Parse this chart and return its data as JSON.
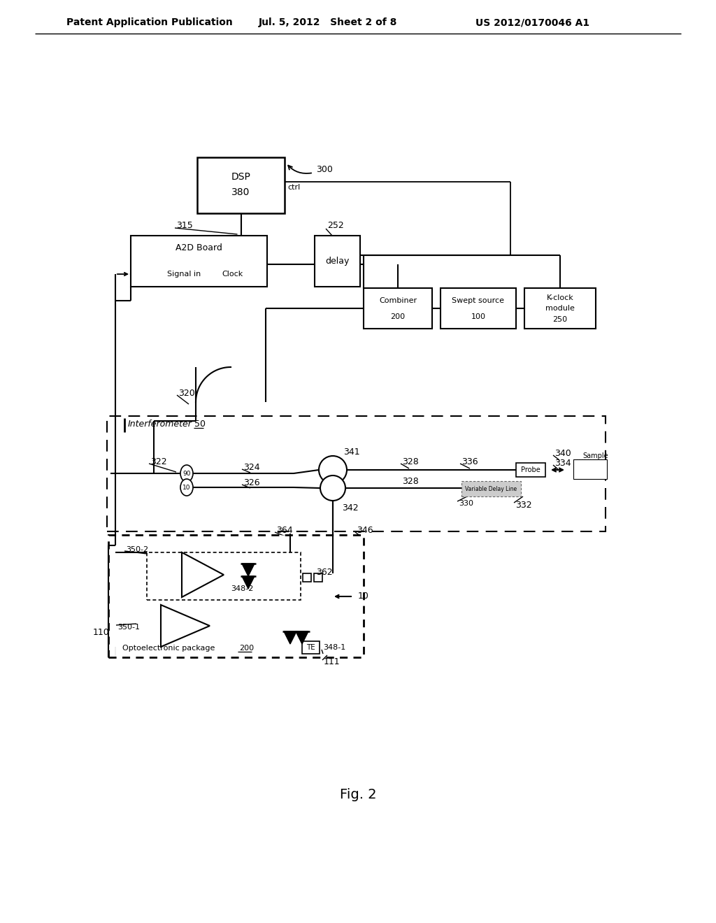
{
  "header_left": "Patent Application Publication",
  "header_mid": "Jul. 5, 2012   Sheet 2 of 8",
  "header_right": "US 2012/0170046 A1",
  "caption": "Fig. 2"
}
